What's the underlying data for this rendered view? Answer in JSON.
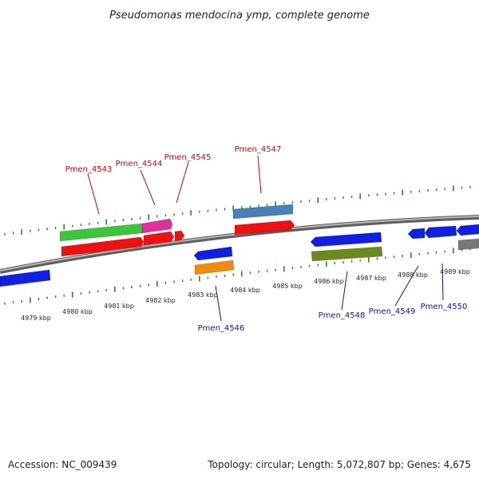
{
  "title": "Pseudomonas mendocina ymp, complete genome",
  "footer": {
    "accession": "Accession: NC_009439",
    "topology": "Topology: circular; Length: 5,072,807 bp; Genes: 4,675"
  },
  "colors": {
    "backbone": "#8c8c8c",
    "tick": "#2a8a2a",
    "label_top": "#d40000",
    "label_bottom": "#1010b0"
  },
  "tick_labels": [
    "4979 kbp",
    "4980 kbp",
    "4981 kbp",
    "4982 kbp",
    "4983 kbp",
    "4984 kbp",
    "4985 kbp",
    "4986 kbp",
    "4987 kbp",
    "4988 kbp",
    "4989 kbp"
  ],
  "gene_labels_top": [
    "Pmen_4543",
    "Pmen_4544",
    "Pmen_4545",
    "Pmen_4547"
  ],
  "gene_labels_bottom": [
    "Pmen_4546",
    "Pmen_4548",
    "Pmen_4549",
    "Pmen_4550"
  ],
  "features": [
    {
      "name": "feature-top-green",
      "color": "#3cc43c"
    },
    {
      "name": "feature-top-magenta",
      "color": "#e0309c"
    },
    {
      "name": "feature-top-red-1",
      "color": "#ee1111"
    },
    {
      "name": "feature-top-red-2",
      "color": "#ee1111"
    },
    {
      "name": "feature-top-red-3",
      "color": "#ee1111"
    },
    {
      "name": "feature-top-steelblue",
      "color": "#4a7fb8"
    },
    {
      "name": "feature-top-red-4",
      "color": "#ee1111"
    },
    {
      "name": "feature-bottom-blue-left",
      "color": "#1020e0"
    },
    {
      "name": "feature-bottom-blue-4546",
      "color": "#1020e0"
    },
    {
      "name": "feature-bottom-orange",
      "color": "#f08a10"
    },
    {
      "name": "feature-bottom-blue-4548",
      "color": "#1020e0"
    },
    {
      "name": "feature-bottom-olive",
      "color": "#6a8a20"
    },
    {
      "name": "feature-bottom-blue-4549",
      "color": "#1020e0"
    },
    {
      "name": "feature-bottom-blue-4550a",
      "color": "#1020e0"
    },
    {
      "name": "feature-bottom-blue-4550b",
      "color": "#1020e0"
    },
    {
      "name": "feature-bottom-gray",
      "color": "#777777"
    }
  ]
}
